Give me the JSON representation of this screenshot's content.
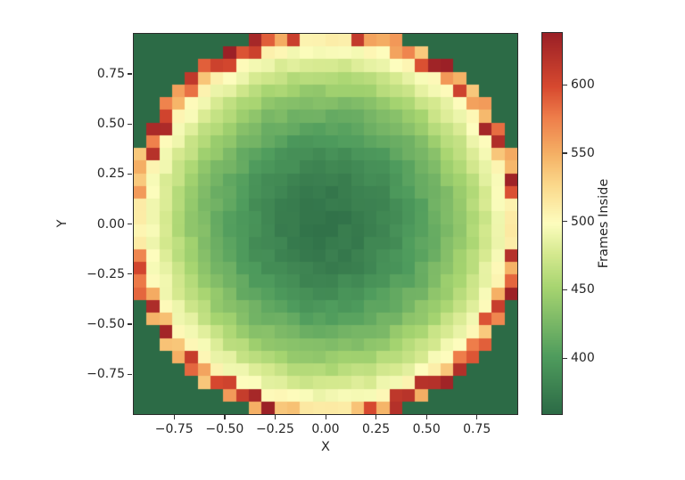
{
  "figure": {
    "background_color": "#ffffff",
    "text_color": "#262626",
    "spine_color": "#2b2b2b",
    "tick_color": "#333333"
  },
  "chart_data": {
    "type": "heatmap",
    "title": "",
    "xlabel": "X",
    "ylabel": "Y",
    "colorbar_label": "Frames Inside",
    "x_range": [
      -0.95,
      0.95
    ],
    "y_range": [
      -0.95,
      0.95
    ],
    "grid_cols": 30,
    "grid_rows": 30,
    "x_ticks": [
      -0.75,
      -0.5,
      -0.25,
      0,
      0.25,
      0.5,
      0.75
    ],
    "x_tick_labels": [
      "−0.75",
      "−0.50",
      "−0.25",
      "0.00",
      "0.25",
      "0.50",
      "0.75"
    ],
    "y_ticks": [
      0.75,
      0.5,
      0.25,
      0,
      -0.25,
      -0.5,
      -0.75
    ],
    "y_tick_labels": [
      "0.75",
      "0.50",
      "0.25",
      "0.00",
      "−0.25",
      "−0.50",
      "−0.75"
    ],
    "colorbar_ticks": [
      600,
      550,
      500,
      450,
      400
    ],
    "colorbar_tick_labels": [
      "600",
      "550",
      "500",
      "450",
      "400"
    ],
    "vmin": 359,
    "vmax": 638,
    "disk_radius": 0.96,
    "outside_value": 0,
    "radial_profile": {
      "r": [
        0.0,
        0.1,
        0.2,
        0.3,
        0.4,
        0.5,
        0.6,
        0.7,
        0.8,
        0.85,
        0.9,
        0.93
      ],
      "value": [
        368,
        370,
        375,
        383,
        395,
        410,
        428,
        450,
        476,
        490,
        504,
        513
      ]
    },
    "boundary_ring": {
      "min": 535,
      "max": 645
    },
    "noise_amplitude": 5,
    "noise_seed": 13,
    "colormap": {
      "name": "RdYlGn_r",
      "stops": [
        {
          "t": 0.0,
          "color": "#2c6b46"
        },
        {
          "t": 0.15,
          "color": "#4f9c5d"
        },
        {
          "t": 0.33,
          "color": "#a6d470"
        },
        {
          "t": 0.42,
          "color": "#d5e98f"
        },
        {
          "t": 0.5,
          "color": "#fdfdbe"
        },
        {
          "t": 0.6,
          "color": "#fbd98c"
        },
        {
          "t": 0.68,
          "color": "#f5b266"
        },
        {
          "t": 0.78,
          "color": "#ee7d4a"
        },
        {
          "t": 0.86,
          "color": "#d7492f"
        },
        {
          "t": 1.0,
          "color": "#9b2026"
        }
      ]
    },
    "legend_position": "right-colorbar",
    "grid_lines": false
  }
}
